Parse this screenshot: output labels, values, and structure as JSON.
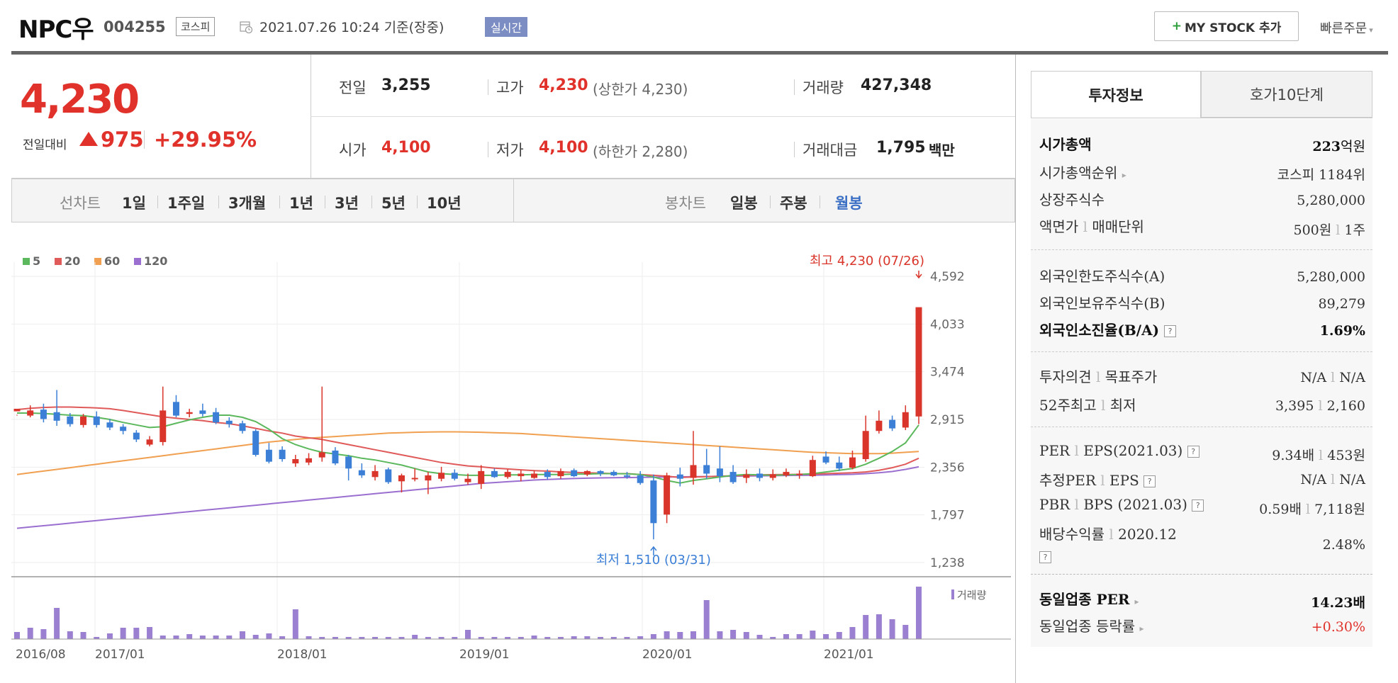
{
  "header": {
    "name": "NPC우",
    "code": "004255",
    "market": "코스피",
    "date_label": "2021.07.26 10:24  기준(장중)",
    "realtime_badge": "실시간",
    "mystock_plus": "+",
    "mystock_label": "MY STOCK 추가",
    "quick_order": "빠른주문"
  },
  "price": {
    "current": "4,230",
    "change_label": "전일대비",
    "change_amount": "975",
    "change_pct": "+29.95%",
    "direction": "up"
  },
  "stats": {
    "prev_label": "전일",
    "prev_value": "3,255",
    "high_label": "고가",
    "high_value": "4,230",
    "high_sub": "(상한가 4,230)",
    "volume_label": "거래량",
    "volume_value": "427,348",
    "open_label": "시가",
    "open_value": "4,100",
    "low_label": "저가",
    "low_value": "4,100",
    "low_sub": "(하한가 2,280)",
    "amount_label": "거래대금",
    "amount_value": "1,795",
    "amount_unit": "백만"
  },
  "period_bar": {
    "line_label": "선차트",
    "line_periods": [
      "1일",
      "1주일",
      "3개월",
      "1년",
      "3년",
      "5년",
      "10년"
    ],
    "candle_label": "봉차트",
    "candle_periods": [
      "일봉",
      "주봉",
      "월봉"
    ],
    "candle_selected": "월봉"
  },
  "chart_data": {
    "type": "candlestick",
    "legend": [
      {
        "name": "5",
        "color": "#5cb85c"
      },
      {
        "name": "20",
        "color": "#e05a5a"
      },
      {
        "name": "60",
        "color": "#f0a050"
      },
      {
        "name": "120",
        "color": "#9b6fd0"
      }
    ],
    "y_ticks": [
      "4,592",
      "4,033",
      "3,474",
      "2,915",
      "2,356",
      "1,797",
      "1,238"
    ],
    "ylim": [
      1238,
      4592
    ],
    "x_ticks": [
      "2016/08",
      "2017/01",
      "2018/01",
      "2019/01",
      "2020/01",
      "2021/01"
    ],
    "max_annotation": "최고 4,230 (07/26)",
    "min_annotation": "최저 1,510 (03/31)",
    "volume_label": "거래량",
    "colors": {
      "up": "#d9352b",
      "down": "#3b7fd6",
      "volume": "#9b7fd1"
    },
    "candles": [
      [
        3010,
        3040,
        2970,
        2960
      ],
      [
        2960,
        3020,
        3080,
        2940
      ],
      [
        3030,
        2920,
        3100,
        2880
      ],
      [
        3000,
        2900,
        3260,
        2840
      ],
      [
        2950,
        2860,
        2990,
        2830
      ],
      [
        2850,
        2950,
        2980,
        2820
      ],
      [
        2950,
        2850,
        3010,
        2820
      ],
      [
        2880,
        2820,
        2920,
        2790
      ],
      [
        2830,
        2780,
        2860,
        2740
      ],
      [
        2760,
        2680,
        2790,
        2650
      ],
      [
        2620,
        2680,
        2720,
        2600
      ],
      [
        2650,
        3020,
        3300,
        2610
      ],
      [
        3120,
        2960,
        3200,
        2940
      ],
      [
        2980,
        3000,
        3040,
        2940
      ],
      [
        3020,
        2980,
        3100,
        2950
      ],
      [
        3000,
        2880,
        3050,
        2860
      ],
      [
        2900,
        2860,
        2940,
        2820
      ],
      [
        2870,
        2780,
        2900,
        2750
      ],
      [
        2780,
        2500,
        2800,
        2480
      ],
      [
        2560,
        2420,
        2640,
        2400
      ],
      [
        2560,
        2450,
        2600,
        2420
      ],
      [
        2400,
        2450,
        2500,
        2360
      ],
      [
        2410,
        2460,
        2520,
        2380
      ],
      [
        2470,
        2530,
        3300,
        2420
      ],
      [
        2550,
        2400,
        2590,
        2380
      ],
      [
        2480,
        2340,
        2500,
        2200
      ],
      [
        2320,
        2260,
        2400,
        2230
      ],
      [
        2240,
        2310,
        2380,
        2200
      ],
      [
        2330,
        2180,
        2350,
        2160
      ],
      [
        2190,
        2260,
        2280,
        2060
      ],
      [
        2230,
        2230,
        2340,
        2190
      ],
      [
        2200,
        2260,
        2300,
        2040
      ],
      [
        2220,
        2290,
        2360,
        2190
      ],
      [
        2290,
        2220,
        2330,
        2200
      ],
      [
        2180,
        2220,
        2280,
        2150
      ],
      [
        2160,
        2310,
        2380,
        2100
      ],
      [
        2310,
        2240,
        2340,
        2230
      ],
      [
        2240,
        2300,
        2330,
        2220
      ],
      [
        2250,
        2280,
        2320,
        2190
      ],
      [
        2230,
        2280,
        2320,
        2220
      ],
      [
        2300,
        2240,
        2330,
        2210
      ],
      [
        2250,
        2310,
        2340,
        2220
      ],
      [
        2320,
        2250,
        2340,
        2240
      ],
      [
        2270,
        2310,
        2320,
        2250
      ],
      [
        2310,
        2280,
        2320,
        2250
      ],
      [
        2300,
        2260,
        2320,
        2250
      ],
      [
        2260,
        2250,
        2300,
        2220
      ],
      [
        2260,
        2170,
        2310,
        2150
      ],
      [
        2200,
        1700,
        2270,
        1510
      ],
      [
        1800,
        2260,
        2290,
        1700
      ],
      [
        2270,
        2220,
        2350,
        2130
      ],
      [
        2230,
        2380,
        2780,
        2150
      ],
      [
        2380,
        2280,
        2570,
        2220
      ],
      [
        2340,
        2250,
        2600,
        2180
      ],
      [
        2300,
        2180,
        2380,
        2160
      ],
      [
        2230,
        2270,
        2330,
        2170
      ],
      [
        2280,
        2230,
        2340,
        2190
      ],
      [
        2230,
        2270,
        2330,
        2200
      ],
      [
        2260,
        2300,
        2340,
        2240
      ],
      [
        2270,
        2280,
        2320,
        2220
      ],
      [
        2250,
        2440,
        2490,
        2240
      ],
      [
        2480,
        2410,
        2540,
        2390
      ],
      [
        2410,
        2340,
        2480,
        2310
      ],
      [
        2350,
        2470,
        2550,
        2330
      ],
      [
        2450,
        2780,
        2960,
        2420
      ],
      [
        2780,
        2900,
        3020,
        2750
      ],
      [
        2910,
        2810,
        2960,
        2780
      ],
      [
        2820,
        3000,
        3080,
        2790
      ],
      [
        2950,
        4230,
        4230,
        2860
      ]
    ],
    "ma5": [
      2990,
      2990,
      2985,
      2975,
      2965,
      2960,
      2940,
      2915,
      2880,
      2850,
      2820,
      2830,
      2870,
      2910,
      2940,
      2965,
      2965,
      2940,
      2890,
      2800,
      2690,
      2620,
      2570,
      2530,
      2510,
      2490,
      2460,
      2440,
      2410,
      2380,
      2340,
      2300,
      2280,
      2270,
      2260,
      2260,
      2260,
      2265,
      2265,
      2270,
      2270,
      2270,
      2275,
      2275,
      2280,
      2280,
      2278,
      2270,
      2240,
      2200,
      2170,
      2200,
      2220,
      2240,
      2260,
      2270,
      2265,
      2260,
      2265,
      2270,
      2280,
      2300,
      2320,
      2340,
      2390,
      2460,
      2540,
      2640,
      2850
    ],
    "ma20": [
      3030,
      3045,
      3055,
      3060,
      3060,
      3055,
      3050,
      3040,
      3020,
      2995,
      2970,
      2945,
      2930,
      2915,
      2900,
      2880,
      2865,
      2840,
      2810,
      2780,
      2755,
      2720,
      2700,
      2680,
      2650,
      2620,
      2590,
      2560,
      2530,
      2500,
      2470,
      2440,
      2410,
      2390,
      2370,
      2360,
      2345,
      2335,
      2325,
      2315,
      2310,
      2300,
      2295,
      2290,
      2285,
      2280,
      2280,
      2270,
      2260,
      2250,
      2235,
      2240,
      2245,
      2250,
      2255,
      2260,
      2265,
      2268,
      2270,
      2272,
      2275,
      2280,
      2285,
      2290,
      2300,
      2320,
      2350,
      2390,
      2460
    ],
    "ma60": [
      2270,
      2290,
      2310,
      2330,
      2350,
      2370,
      2390,
      2410,
      2430,
      2450,
      2470,
      2490,
      2510,
      2530,
      2550,
      2570,
      2590,
      2610,
      2630,
      2650,
      2665,
      2680,
      2695,
      2705,
      2715,
      2725,
      2735,
      2745,
      2755,
      2760,
      2765,
      2768,
      2770,
      2770,
      2768,
      2765,
      2760,
      2755,
      2750,
      2740,
      2730,
      2720,
      2710,
      2700,
      2690,
      2680,
      2670,
      2660,
      2650,
      2640,
      2630,
      2620,
      2610,
      2600,
      2590,
      2580,
      2570,
      2560,
      2550,
      2540,
      2530,
      2525,
      2520,
      2515,
      2515,
      2515,
      2520,
      2530,
      2540
    ],
    "ma120": [
      1640,
      1655,
      1670,
      1685,
      1700,
      1715,
      1730,
      1745,
      1760,
      1775,
      1790,
      1805,
      1820,
      1835,
      1850,
      1865,
      1880,
      1895,
      1910,
      1925,
      1940,
      1955,
      1970,
      1985,
      2000,
      2015,
      2030,
      2045,
      2060,
      2075,
      2090,
      2105,
      2120,
      2135,
      2150,
      2165,
      2175,
      2185,
      2195,
      2205,
      2212,
      2218,
      2223,
      2227,
      2230,
      2232,
      2234,
      2236,
      2238,
      2240,
      2242,
      2244,
      2246,
      2248,
      2250,
      2252,
      2254,
      2256,
      2258,
      2260,
      2262,
      2264,
      2268,
      2272,
      2280,
      2290,
      2305,
      2330,
      2360
    ],
    "volumes": [
      10,
      16,
      14,
      44,
      11,
      10,
      3,
      8,
      16,
      16,
      17,
      5,
      5,
      7,
      5,
      5,
      5,
      11,
      6,
      8,
      4,
      42,
      4,
      3,
      3,
      3,
      3,
      3,
      3,
      3,
      6,
      3,
      3,
      3,
      13,
      3,
      3,
      3,
      3,
      5,
      3,
      3,
      4,
      4,
      3,
      3,
      3,
      4,
      7,
      11,
      10,
      11,
      55,
      11,
      13,
      10,
      6,
      3,
      7,
      7,
      12,
      7,
      10,
      17,
      34,
      35,
      28,
      20,
      74
    ]
  },
  "tabs": {
    "info": "투자정보",
    "hoga": "호가10단계"
  },
  "invest_info": {
    "market_cap_label": "시가총액",
    "market_cap_num": "223",
    "market_cap_unit": "억원",
    "cap_rank_label": "시가총액순위",
    "cap_rank_value": "코스피 1184위",
    "shares_label": "상장주식수",
    "shares_value": "5,280,000",
    "par_label": "액면가",
    "unit_label": "매매단위",
    "par_value": "500원",
    "unit_value": "1주",
    "foreign_limit_label": "외국인한도주식수(A)",
    "foreign_limit_value": "5,280,000",
    "foreign_hold_label": "외국인보유주식수(B)",
    "foreign_hold_value": "89,279",
    "foreign_ratio_label": "외국인소진율(B/A)",
    "foreign_ratio_value": "1.69%",
    "opinion_label": "투자의견",
    "target_label": "목표주가",
    "opinion_value": "N/A",
    "target_value": "N/A",
    "w52_high_label": "52주최고",
    "w52_low_label": "최저",
    "w52_high_value": "3,395",
    "w52_low_value": "2,160",
    "per_label": "PER",
    "eps_label": "EPS(2021.03)",
    "per_value": "9.34배",
    "eps_value": "453원",
    "est_per_label": "추정PER",
    "est_eps_label": "EPS",
    "est_per_value": "N/A",
    "est_eps_value": "N/A",
    "pbr_label": "PBR",
    "bps_label": "BPS (2021.03)",
    "pbr_value": "0.59배",
    "bps_value": "7,118원",
    "div_label": "배당수익률",
    "div_period": "2020.12",
    "div_value": "2.48%",
    "sector_per_label": "동일업종 PER",
    "sector_per_value": "14.23배",
    "sector_chg_label": "동일업종 등락률",
    "sector_chg_value": "+0.30%",
    "sep": "l",
    "help": "?",
    "arrow": "▸"
  }
}
